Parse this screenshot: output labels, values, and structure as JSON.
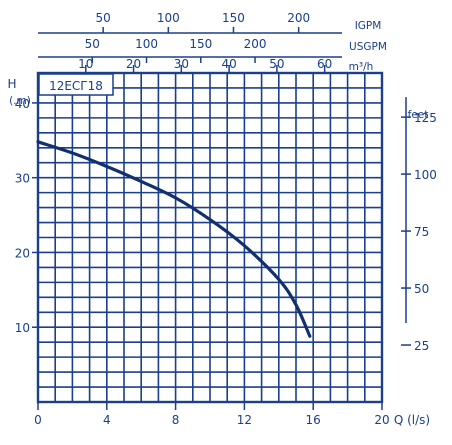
{
  "chart_data": {
    "type": "line",
    "model": "12ECГ18",
    "x_axis": {
      "label": "Q (l/s)",
      "range": [
        0,
        20
      ],
      "ticks": [
        0,
        4,
        8,
        12,
        16,
        20
      ]
    },
    "y_axis_left": {
      "label": "H",
      "unit": "(.m)",
      "range": [
        0,
        44
      ],
      "ticks": [
        10,
        20,
        30,
        40
      ]
    },
    "y_axis_right": {
      "label": "feet",
      "ticks": [
        25,
        50,
        75,
        100,
        125
      ]
    },
    "top_axes": [
      {
        "label": "IGPM",
        "ticks": [
          50,
          100,
          150,
          200
        ]
      },
      {
        "label": "USGPM",
        "ticks": [
          50,
          100,
          150,
          200
        ]
      },
      {
        "label": "m³/h",
        "ticks": [
          10,
          20,
          30,
          40,
          50,
          60
        ]
      }
    ],
    "grid": true,
    "series": [
      {
        "x": [
          0,
          2,
          4,
          6,
          8,
          10,
          12,
          14,
          15,
          15.8
        ],
        "y": [
          34.8,
          33.3,
          31.5,
          29.5,
          27.3,
          24.4,
          20.9,
          16.4,
          13.0,
          8.8
        ]
      }
    ]
  }
}
